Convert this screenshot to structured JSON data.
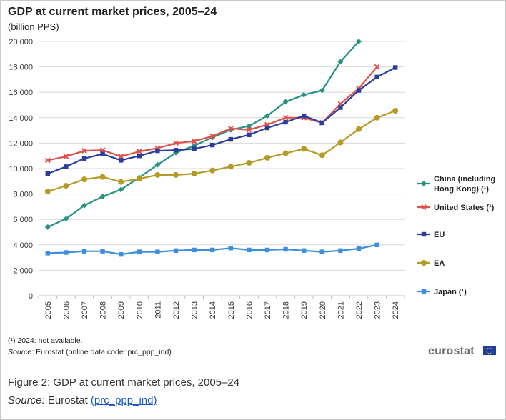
{
  "page": {
    "note": "(¹) 2024: not available.",
    "source_label": "Source:",
    "source_text": "Eurostat (online data code: prc_ppp_ind)",
    "logo_text": "eurostat",
    "caption_title": "Figure 2: GDP at current market prices, 2005–24",
    "caption_source_label": "Source:",
    "caption_source_text": "Eurostat",
    "caption_link_text": "(prc_ppp_ind)"
  },
  "chart_data": {
    "type": "line",
    "title": "GDP at current market prices, 2005–24",
    "subtitle": "(billion PPS)",
    "xlabel": "",
    "ylabel": "",
    "ylim": [
      0,
      20000
    ],
    "yticks": [
      0,
      2000,
      4000,
      6000,
      8000,
      10000,
      12000,
      14000,
      16000,
      18000,
      20000
    ],
    "ytick_labels": [
      "0",
      "2 000",
      "4 000",
      "6 000",
      "8 000",
      "10 000",
      "12 000",
      "14 000",
      "16 000",
      "18 000",
      "20 000"
    ],
    "gridlines": "horizontal",
    "legend_position": "right",
    "x": [
      "2005",
      "2006",
      "2007",
      "2008",
      "2009",
      "2010",
      "2011",
      "2012",
      "2013",
      "2014",
      "2015",
      "2016",
      "2017",
      "2018",
      "2019",
      "2020",
      "2021",
      "2022",
      "2023",
      "2024"
    ],
    "series": [
      {
        "name": "China (including Hong Kong) (¹)",
        "legend_lines": [
          "China (including",
          "Hong Kong) (¹)"
        ],
        "color": "#2a9185",
        "marker": "diamond",
        "values": [
          5400,
          6050,
          7100,
          7800,
          8350,
          9300,
          10300,
          11250,
          11800,
          12450,
          13050,
          13350,
          14150,
          15250,
          15800,
          16150,
          18400,
          20000,
          null,
          null
        ]
      },
      {
        "name": "United States (¹)",
        "legend_lines": [
          "United States (¹)"
        ],
        "color": "#e0504b",
        "marker": "x",
        "values": [
          10650,
          10950,
          11400,
          11450,
          10950,
          11350,
          11600,
          12000,
          12150,
          12550,
          13150,
          13050,
          13450,
          14000,
          14000,
          13600,
          15100,
          16300,
          18000,
          null
        ]
      },
      {
        "name": "EU",
        "legend_lines": [
          "EU"
        ],
        "color": "#2a3d9a",
        "marker": "square",
        "values": [
          9600,
          10150,
          10800,
          11150,
          10650,
          11000,
          11400,
          11450,
          11550,
          11850,
          12300,
          12650,
          13200,
          13650,
          14150,
          13600,
          14800,
          16150,
          17200,
          17950
        ]
      },
      {
        "name": "EA",
        "legend_lines": [
          "EA"
        ],
        "color": "#b59a26",
        "marker": "circle",
        "values": [
          8200,
          8650,
          9150,
          9350,
          8950,
          9200,
          9500,
          9500,
          9600,
          9850,
          10150,
          10450,
          10850,
          11200,
          11550,
          11050,
          12050,
          13100,
          14000,
          14550
        ]
      },
      {
        "name": "Japan (¹)",
        "legend_lines": [
          "Japan (¹)"
        ],
        "color": "#3b8fde",
        "marker": "square",
        "values": [
          3350,
          3400,
          3500,
          3500,
          3250,
          3450,
          3450,
          3550,
          3600,
          3600,
          3750,
          3600,
          3600,
          3650,
          3550,
          3450,
          3550,
          3700,
          4000,
          null
        ]
      }
    ]
  }
}
